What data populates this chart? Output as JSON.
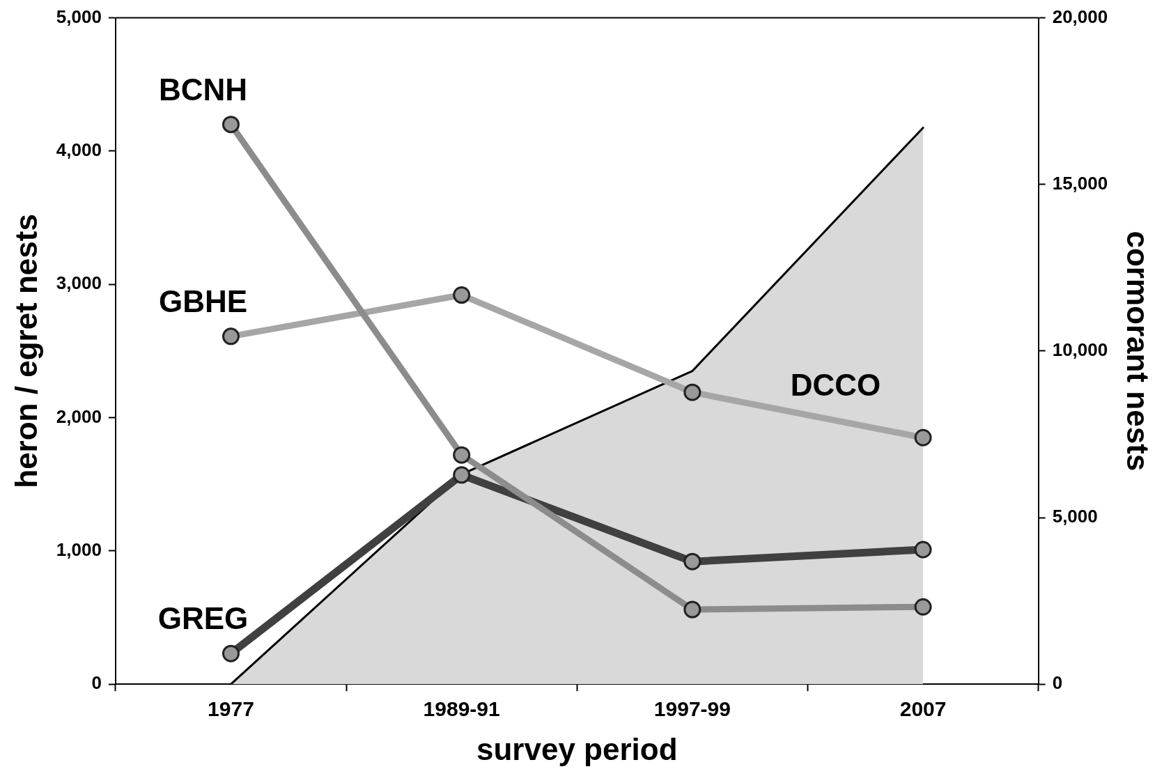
{
  "chart_data": {
    "type": "line",
    "xlabel": "survey period",
    "ylabel": "heron / egret nests",
    "y2label": "cormorant nests",
    "categories": [
      "1977",
      "1989-91",
      "1997-99",
      "2007"
    ],
    "series": [
      {
        "name": "DCCO",
        "type": "area",
        "axis": "y2",
        "marker": "none",
        "color": "#d9d9d9",
        "values": [
          0,
          6300,
          9400,
          16700
        ]
      },
      {
        "name": "BCNH",
        "color": "#8c8c8c",
        "values": [
          4200,
          1720,
          560,
          580
        ]
      },
      {
        "name": "GBHE",
        "color": "#a6a6a6",
        "values": [
          2610,
          2920,
          2190,
          1850
        ]
      },
      {
        "name": "GREG",
        "color": "#404040",
        "values": [
          230,
          1570,
          920,
          1010
        ]
      }
    ],
    "ylim": [
      0,
      5000
    ],
    "yticks": [
      0,
      {
        "value": 1000,
        "label": "1,000"
      },
      {
        "value": 2000,
        "label": "2,000"
      },
      {
        "value": 3000,
        "label": "3,000"
      },
      {
        "value": 4000,
        "label": "4,000"
      },
      {
        "value": 5000,
        "label": "5,000"
      }
    ],
    "y2lim": [
      0,
      20000
    ],
    "y2ticks": [
      0,
      {
        "value": 5000,
        "label": "5,000"
      },
      {
        "value": 10000,
        "label": "10,000"
      },
      {
        "value": 15000,
        "label": "15,000"
      },
      {
        "value": 20000,
        "label": "20,000"
      }
    ],
    "grid": false,
    "legend": false,
    "marker": "circle",
    "line_style": "solid"
  }
}
